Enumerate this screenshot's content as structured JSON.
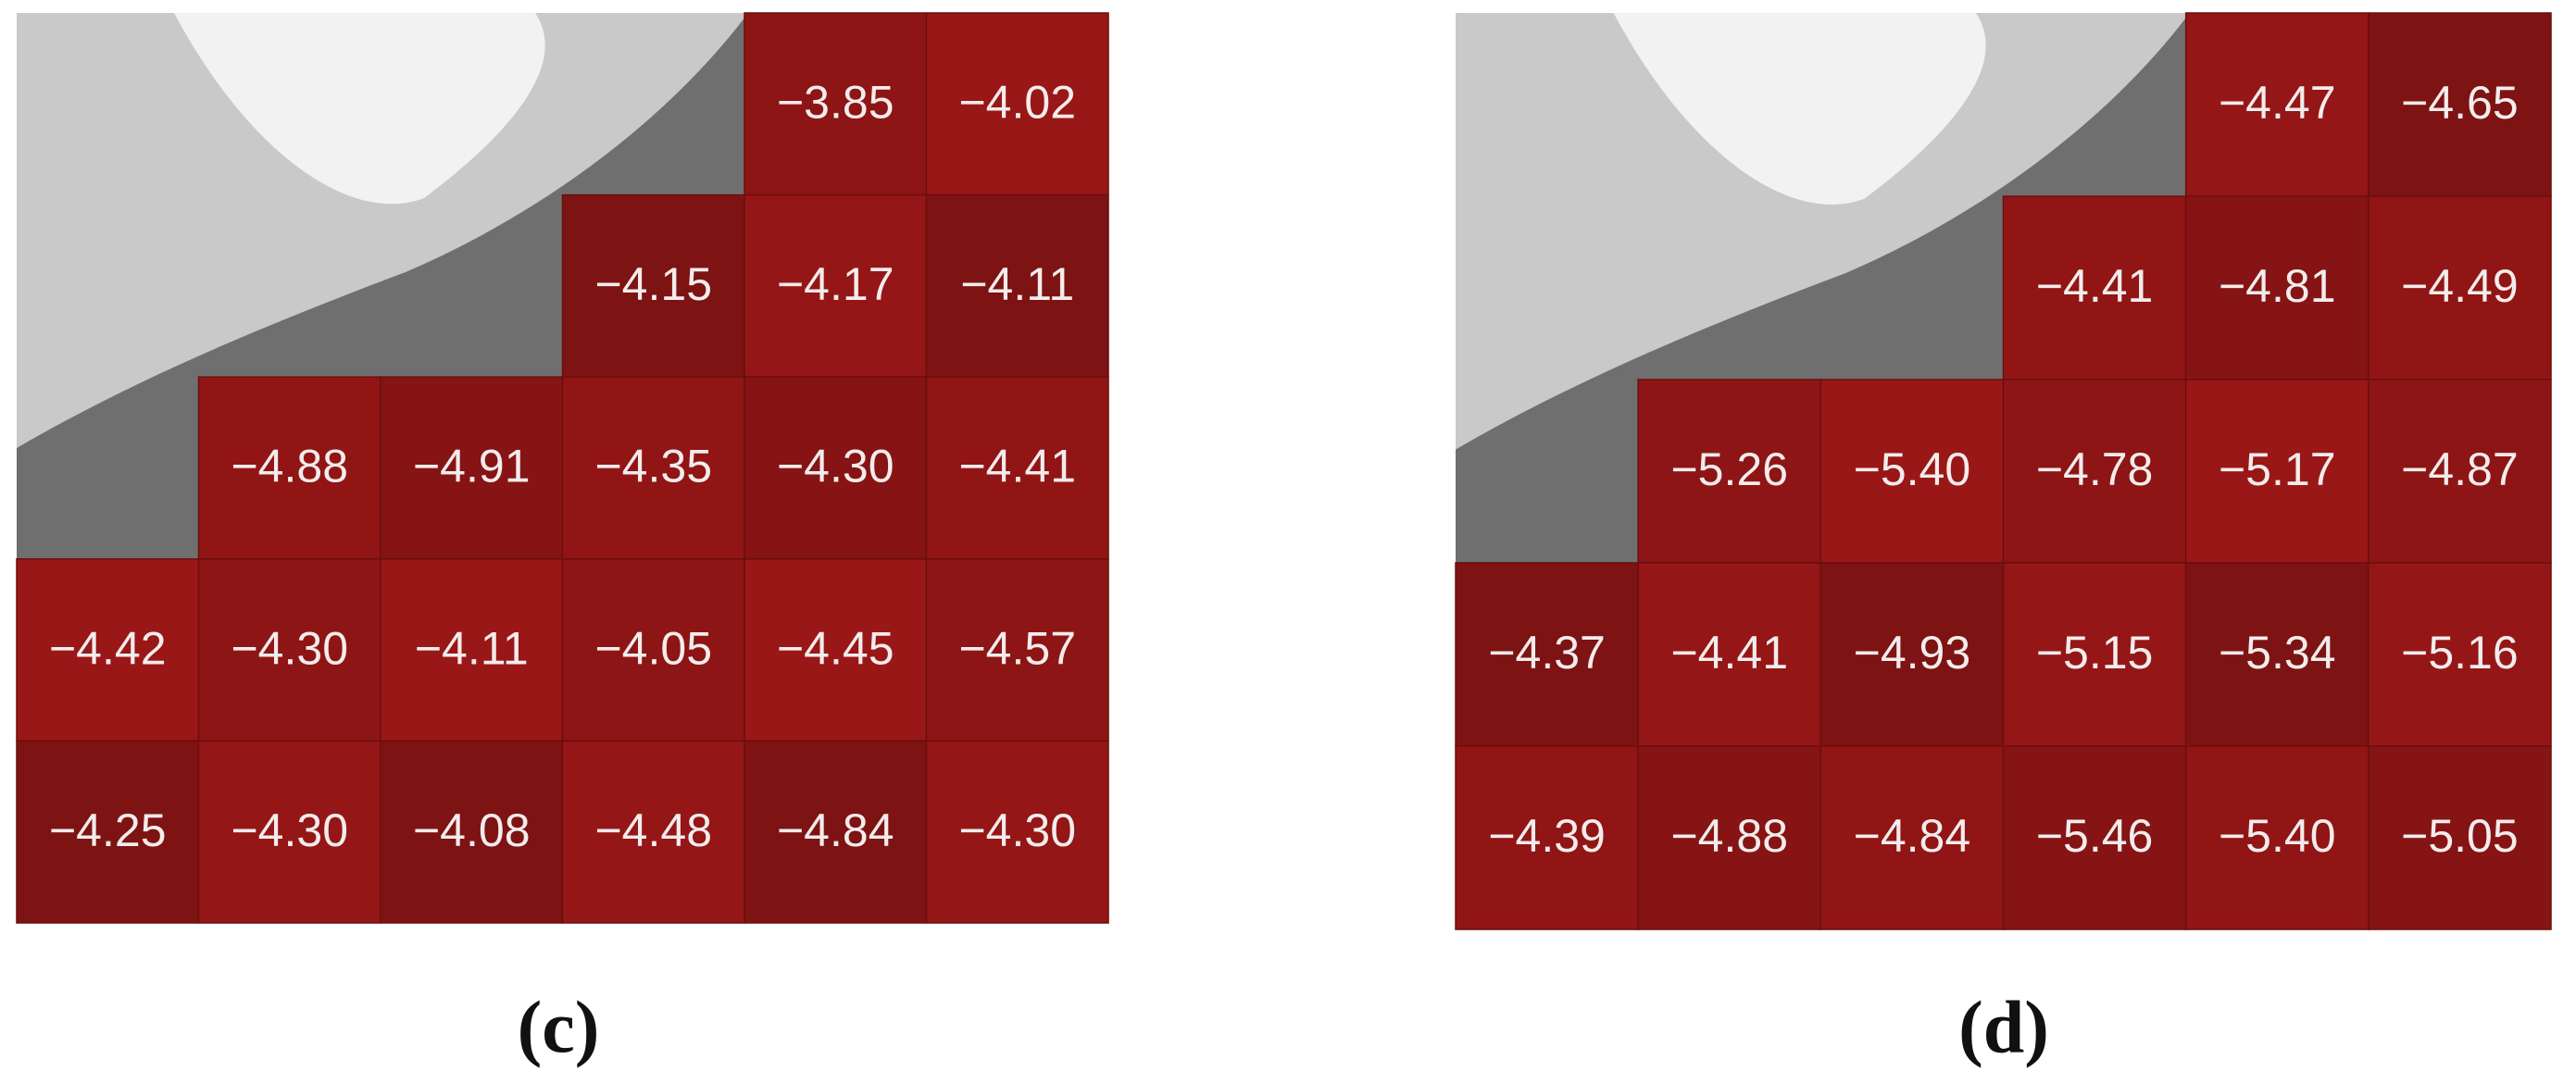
{
  "panels": [
    {
      "label": "(c)",
      "cells": [
        [
          null,
          null,
          null,
          null,
          "−3.85",
          "−4.02"
        ],
        [
          null,
          null,
          null,
          "−4.15",
          "−4.17",
          "−4.11"
        ],
        [
          null,
          "−4.88",
          "−4.91",
          "−4.35",
          "−4.30",
          "−4.41"
        ],
        [
          "−4.42",
          "−4.30",
          "−4.11",
          "−4.05",
          "−4.45",
          "−4.57"
        ],
        [
          "−4.25",
          "−4.30",
          "−4.08",
          "−4.48",
          "−4.84",
          "−4.30"
        ]
      ]
    },
    {
      "label": "(d)",
      "cells": [
        [
          null,
          null,
          null,
          null,
          "−4.47",
          "−4.65"
        ],
        [
          null,
          null,
          null,
          "−4.41",
          "−4.81",
          "−4.49"
        ],
        [
          null,
          "−5.26",
          "−5.40",
          "−4.78",
          "−5.17",
          "−4.87"
        ],
        [
          "−4.37",
          "−4.41",
          "−4.93",
          "−5.15",
          "−5.34",
          "−5.16"
        ],
        [
          "−4.39",
          "−4.88",
          "−4.84",
          "−5.46",
          "−5.40",
          "−5.05"
        ]
      ]
    }
  ]
}
